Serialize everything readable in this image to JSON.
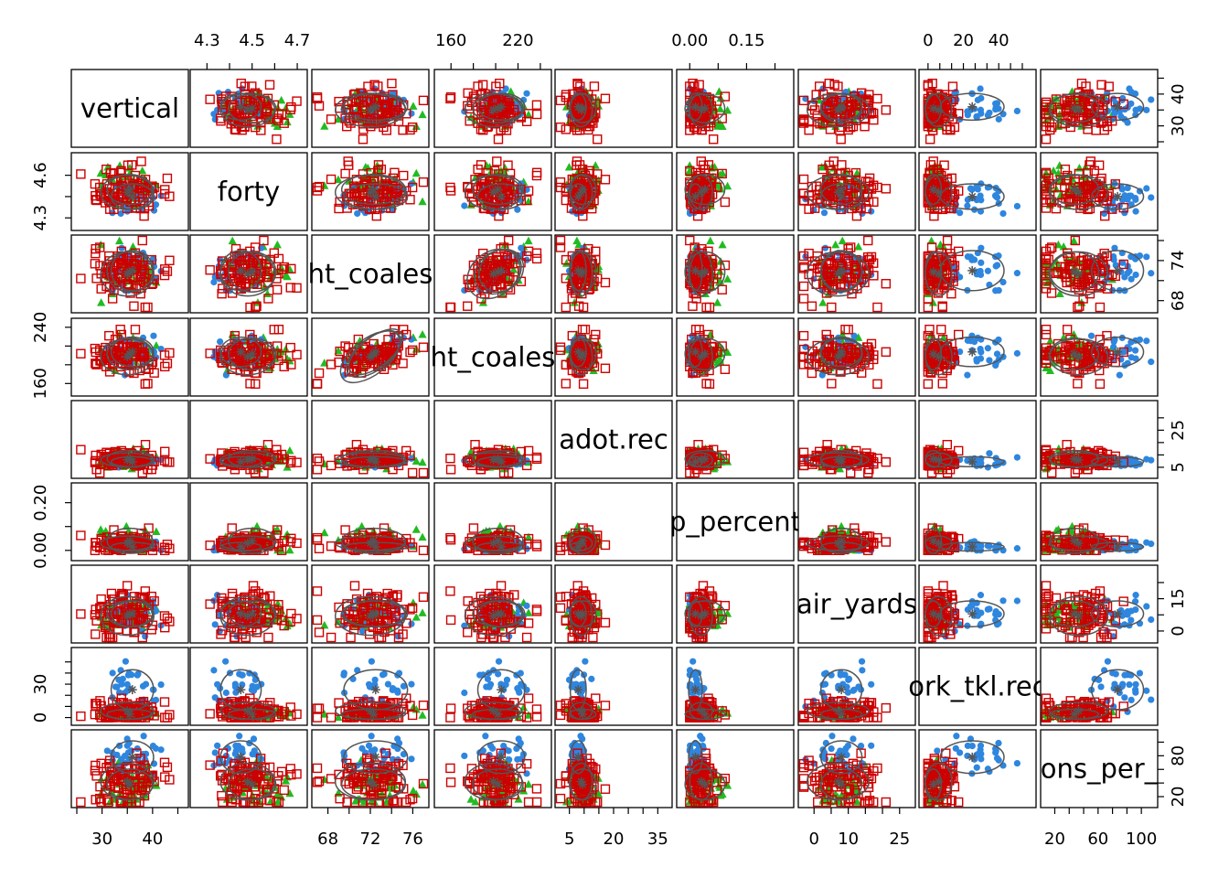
{
  "chart_data": {
    "type": "scatter",
    "title": "",
    "variables": [
      "vertical",
      "forty",
      "ht_coalesce",
      "wt_coalesce",
      "adot.rec",
      "ap_percent",
      "air_yards",
      "york_tkl.rec",
      "yns_per_"
    ],
    "diagonal_labels": [
      "vertical",
      "forty",
      "ht_coales",
      "ht_coales",
      "adot.rec",
      "p_percent",
      "air_yards",
      "ork_tkl.rec",
      "ons_per_"
    ],
    "groups": [
      {
        "name": "",
        "color": "#2E86DE",
        "marker": "filled-circle"
      },
      {
        "name": "",
        "color": "#CC0000",
        "marker": "open-square"
      },
      {
        "name": "",
        "color": "#22BB22",
        "marker": "filled-triangle"
      }
    ],
    "ranges": [
      [
        25,
        46
      ],
      [
        4.25,
        4.72
      ],
      [
        67,
        77
      ],
      [
        150,
        245
      ],
      [
        2,
        38
      ],
      [
        -0.02,
        0.26
      ],
      [
        -3,
        28
      ],
      [
        -2,
        58
      ],
      [
        12,
        110
      ]
    ],
    "axes": {
      "top": [
        {
          "var_index": 1,
          "ticks": [
            "4.3",
            "4.5",
            "4.7"
          ],
          "values": [
            4.3,
            4.5,
            4.7
          ]
        },
        {
          "var_index": 3,
          "ticks": [
            "160",
            "220"
          ],
          "values": [
            160,
            220
          ]
        },
        {
          "var_index": 5,
          "ticks": [
            "0.00",
            "0.15"
          ],
          "values": [
            0.0,
            0.15
          ]
        },
        {
          "var_index": 7,
          "ticks": [
            "0",
            "20",
            "40"
          ],
          "values": [
            0,
            20,
            40
          ]
        }
      ],
      "bottom": [
        {
          "var_index": 0,
          "ticks": [
            "30",
            "40"
          ],
          "values": [
            30,
            40
          ]
        },
        {
          "var_index": 2,
          "ticks": [
            "68",
            "72",
            "76"
          ],
          "values": [
            68,
            72,
            76
          ]
        },
        {
          "var_index": 4,
          "ticks": [
            "5",
            "20",
            "35"
          ],
          "values": [
            5,
            20,
            35
          ]
        },
        {
          "var_index": 6,
          "ticks": [
            "0",
            "10",
            "25"
          ],
          "values": [
            0,
            10,
            25
          ]
        },
        {
          "var_index": 8,
          "ticks": [
            "20",
            "60",
            "100"
          ],
          "values": [
            20,
            60,
            100
          ]
        }
      ],
      "left": [
        {
          "var_index": 1,
          "ticks": [
            "4.3",
            "4.6"
          ],
          "values": [
            4.3,
            4.6
          ]
        },
        {
          "var_index": 3,
          "ticks": [
            "160",
            "240"
          ],
          "values": [
            160,
            240
          ]
        },
        {
          "var_index": 5,
          "ticks": [
            "0.00",
            "0.20"
          ],
          "values": [
            0.0,
            0.2
          ]
        },
        {
          "var_index": 7,
          "ticks": [
            "0",
            "30"
          ],
          "values": [
            0,
            30
          ]
        }
      ],
      "right": [
        {
          "var_index": 0,
          "ticks": [
            "30",
            "40"
          ],
          "values": [
            30,
            40
          ]
        },
        {
          "var_index": 2,
          "ticks": [
            "68",
            "74"
          ],
          "values": [
            68,
            74
          ]
        },
        {
          "var_index": 4,
          "ticks": [
            "5",
            "25"
          ],
          "values": [
            5,
            25
          ]
        },
        {
          "var_index": 6,
          "ticks": [
            "0",
            "15"
          ],
          "values": [
            0,
            15
          ]
        },
        {
          "var_index": 8,
          "ticks": [
            "20",
            "80"
          ],
          "values": [
            20,
            80
          ]
        }
      ]
    },
    "group_stats": [
      {
        "mean": [
          36,
          4.45,
          72.5,
          205,
          8,
          0.015,
          8,
          25,
          78
        ],
        "sd": [
          2.8,
          0.06,
          2,
          14,
          1.8,
          0.012,
          4,
          12,
          16
        ]
      },
      {
        "mean": [
          35,
          4.48,
          72,
          198,
          9,
          0.03,
          7,
          6,
          42
        ],
        "sd": [
          3.5,
          0.08,
          2.2,
          17,
          2.5,
          0.02,
          6,
          5,
          18
        ]
      },
      {
        "mean": [
          35.5,
          4.5,
          72.3,
          202,
          9.5,
          0.04,
          8,
          3,
          38
        ],
        "sd": [
          3,
          0.07,
          2,
          15,
          3,
          0.035,
          4,
          3,
          15
        ]
      }
    ],
    "ellipses": "per-panel data ellipse with center marker (*) drawn for each group",
    "grid": false,
    "legend": "none"
  }
}
